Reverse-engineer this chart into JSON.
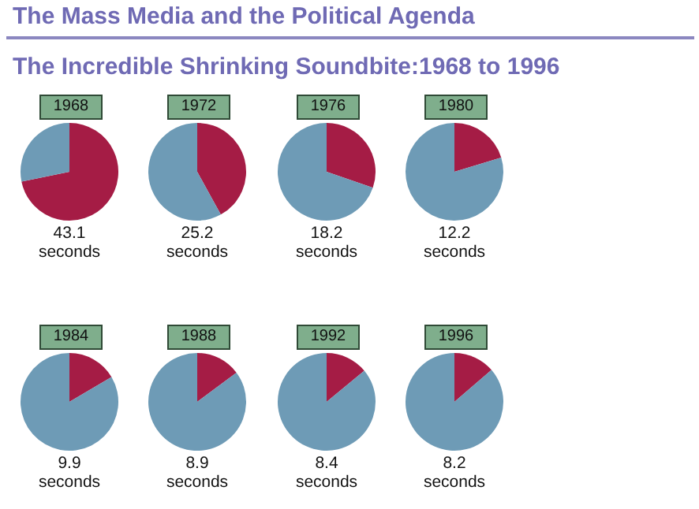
{
  "chart_data": [
    {
      "type": "other",
      "title": "The Mass Media and the Political Agenda",
      "subtitle": "The Incredible Shrinking Soundbite:1968 to 1996"
    },
    {
      "type": "pie",
      "title": "1968",
      "categories": [
        null,
        null
      ],
      "values": [
        71.8,
        28.2
      ],
      "colors": [
        "#a51c45",
        "#6e9bb6"
      ],
      "annotations": [
        "43.1 seconds"
      ]
    },
    {
      "type": "pie",
      "title": "1972",
      "categories": [
        null,
        null
      ],
      "values": [
        42,
        58
      ],
      "colors": [
        "#a51c45",
        "#6e9bb6"
      ],
      "annotations": [
        "25.2 seconds"
      ]
    },
    {
      "type": "pie",
      "title": "1976",
      "categories": [
        null,
        null
      ],
      "values": [
        30.3,
        69.7
      ],
      "colors": [
        "#a51c45",
        "#6e9bb6"
      ],
      "annotations": [
        "18.2 seconds"
      ]
    },
    {
      "type": "pie",
      "title": "1980",
      "categories": [
        null,
        null
      ],
      "values": [
        20.3,
        79.7
      ],
      "colors": [
        "#a51c45",
        "#6e9bb6"
      ],
      "annotations": [
        "12.2 seconds"
      ]
    },
    {
      "type": "pie",
      "title": "1984",
      "categories": [
        null,
        null
      ],
      "values": [
        16.5,
        83.5
      ],
      "colors": [
        "#a51c45",
        "#6e9bb6"
      ],
      "annotations": [
        "9.9 seconds"
      ]
    },
    {
      "type": "pie",
      "title": "1988",
      "categories": [
        null,
        null
      ],
      "values": [
        14.8,
        85.2
      ],
      "colors": [
        "#a51c45",
        "#6e9bb6"
      ],
      "annotations": [
        "8.9 seconds"
      ]
    },
    {
      "type": "pie",
      "title": "1992",
      "categories": [
        null,
        null
      ],
      "values": [
        14,
        86
      ],
      "colors": [
        "#a51c45",
        "#6e9bb6"
      ],
      "annotations": [
        "8.4 seconds"
      ]
    },
    {
      "type": "pie",
      "title": "1996",
      "categories": [
        null,
        null
      ],
      "values": [
        13.7,
        86.3
      ],
      "colors": [
        "#a51c45",
        "#6e9bb6"
      ],
      "annotations": [
        "8.2 seconds"
      ]
    }
  ]
}
